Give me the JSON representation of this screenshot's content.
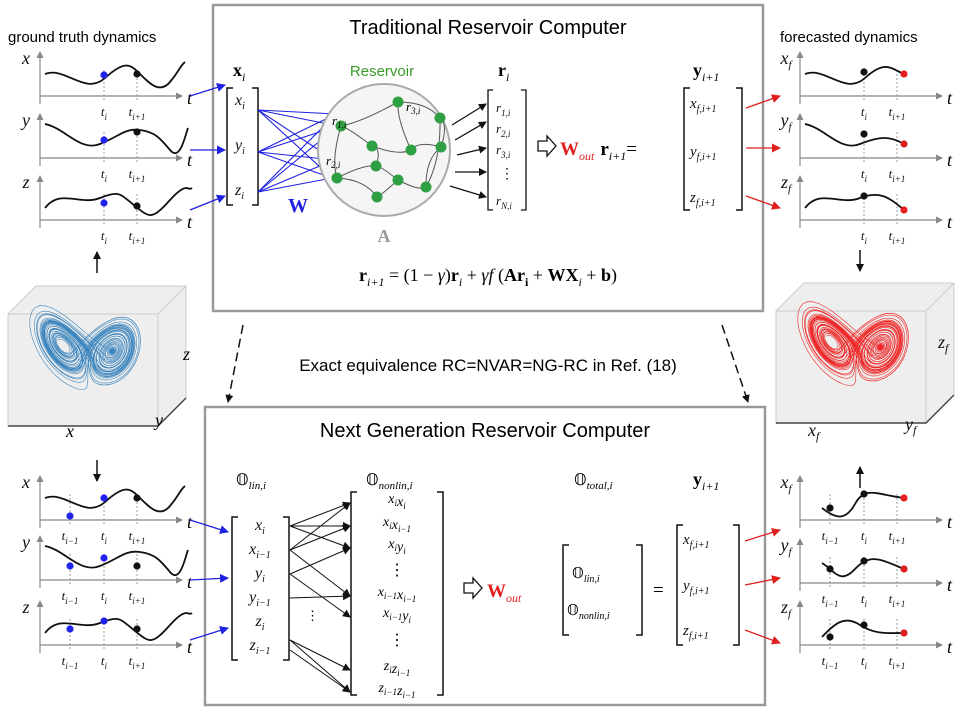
{
  "colors": {
    "blue": "#1f22e0",
    "red": "#e02020",
    "green": "#2ea043",
    "reservoir_label": "#3a9a2a",
    "gray_frame": "#999999",
    "lorenz_blue": "#2a7ab8",
    "lorenz_red": "#ee1111",
    "dot_blue": "#2222ee",
    "dot_black": "#111111"
  },
  "headers": {
    "ground_truth": "ground truth dynamics",
    "forecasted": "forecasted dynamics"
  },
  "rc": {
    "title": "Traditional Reservoir Computer",
    "reservoir_label": "Reservoir",
    "x_label": "x",
    "x_sub": "i",
    "inputs": [
      "x",
      "y",
      "z"
    ],
    "input_sub": "i",
    "W": "W",
    "A": "A",
    "r_label": "r",
    "r_sub": "i",
    "r_vector": [
      "r1,i",
      "r2,i",
      "r3,i",
      "⋮",
      "rN,i"
    ],
    "node_labels": [
      "r1,i",
      "r3,i",
      "r2,i"
    ],
    "wout": "W",
    "wout_sub": "out",
    "r_next": "r",
    "r_next_sub": "i+1",
    "equals": "=",
    "y_label": "y",
    "y_sub": "i+1",
    "y_vector": [
      "xf,i+1",
      "yf,i+1",
      "zf,i+1"
    ],
    "update_equation": "r_{i+1} = (1 − γ)r_i + γf (Ar_i + WX_i + b)"
  },
  "equivalence": "Exact equivalence RC=NVAR=NG-RC in Ref. (18)",
  "ngrc": {
    "title": "Next Generation Reservoir Computer",
    "lin_label": "𝕆",
    "lin_sub": "lin,i",
    "nonlin_label": "𝕆",
    "nonlin_sub": "nonlin,i",
    "total_label": "𝕆",
    "total_sub": "total,i",
    "y_label": "y",
    "y_sub": "i+1",
    "lin_vector": [
      "x_i",
      "x_{i−1}",
      "y_i",
      "y_{i−1}",
      "z_i",
      "z_{i−1}"
    ],
    "nonlin_vector": [
      "x_i x_i",
      "x_i x_{i−1}",
      "x_i y_i",
      "⋮",
      "x_{i−1} x_{i−1}",
      "x_{i−1} y_i",
      "⋮",
      "z_i z_{i−1}",
      "z_{i−1} z_{i−1}"
    ],
    "wout": "W",
    "wout_sub": "out",
    "total_vector": [
      "𝕆lin,i",
      "𝕆nonlin,i"
    ],
    "equals": "=",
    "y_vector": [
      "xf,i+1",
      "yf,i+1",
      "zf,i+1"
    ]
  },
  "plots": {
    "t_label": "t",
    "ti": "t",
    "ti_sub": "i",
    "ti1": "t",
    "ti1_sub": "i+1",
    "tim1_sub": "i−1",
    "gt_axes": [
      "x",
      "y",
      "z"
    ],
    "fc_axes": [
      "x",
      "y",
      "z"
    ],
    "fc_axis_sub": "f"
  },
  "attractor": {
    "gt_axes": [
      "x",
      "y",
      "z"
    ],
    "fc_axes": [
      "xf",
      "yf",
      "zf"
    ]
  }
}
